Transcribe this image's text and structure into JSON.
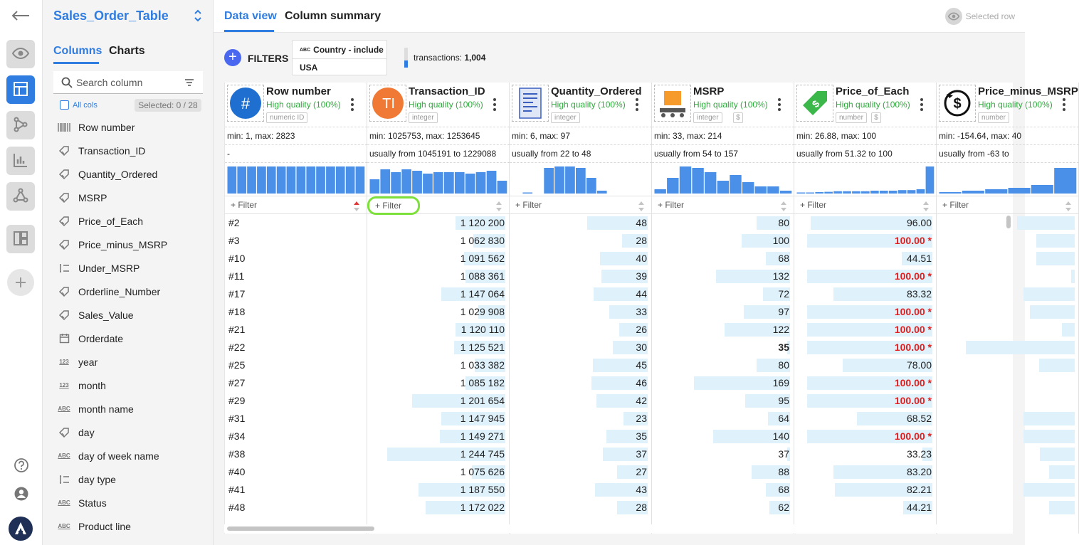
{
  "sidebar": {
    "table_name": "Sales_Order_Table",
    "tabs": [
      "Columns",
      "Charts"
    ],
    "search_placeholder": "Search column",
    "all_cols_label": "All cols",
    "selected_label": "Selected: 0 / 28",
    "columns": [
      {
        "name": "Row number",
        "icon": "barcode-icon"
      },
      {
        "name": "Transaction_ID",
        "icon": "tag-icon"
      },
      {
        "name": "Quantity_Ordered",
        "icon": "tag-icon"
      },
      {
        "name": "MSRP",
        "icon": "tag-icon"
      },
      {
        "name": "Price_of_Each",
        "icon": "tag-icon"
      },
      {
        "name": "Price_minus_MSRP",
        "icon": "tag-icon"
      },
      {
        "name": "Under_MSRP",
        "icon": "boolean-icon"
      },
      {
        "name": "Orderline_Number",
        "icon": "tag-icon"
      },
      {
        "name": "Sales_Value",
        "icon": "tag-icon"
      },
      {
        "name": "Orderdate",
        "icon": "calendar-icon"
      },
      {
        "name": "year",
        "icon": "number-icon",
        "badge": "123"
      },
      {
        "name": "month",
        "icon": "number-icon",
        "badge": "123"
      },
      {
        "name": "month name",
        "icon": "text-icon",
        "badge": "ABC"
      },
      {
        "name": "day",
        "icon": "tag-icon"
      },
      {
        "name": "day of week name",
        "icon": "text-icon",
        "badge": "ABC"
      },
      {
        "name": "day type",
        "icon": "boolean-icon"
      },
      {
        "name": "Status",
        "icon": "text-icon",
        "badge": "ABC"
      },
      {
        "name": "Product line",
        "icon": "text-icon",
        "badge": "ABC"
      }
    ]
  },
  "main": {
    "tabs": [
      "Data view",
      "Column summary"
    ],
    "selected_row_label": "Selected row",
    "filters_label": "FILTERS",
    "filter_chip": {
      "badge": "ABC",
      "name": "Country - include",
      "value": "USA"
    },
    "transactions": {
      "prefix": "transactions: ",
      "count": "1,004",
      "fraction": 0.36
    },
    "filter_placeholder": "Filter"
  },
  "grid": {
    "columns": [
      {
        "name": "Row number",
        "quality": "High quality (100%)",
        "types": [
          "numeric ID"
        ],
        "minmax": "min: 1, max: 2823",
        "usually": "-",
        "icon": "hash-icon",
        "hist": [
          0.95,
          0.95,
          0.95,
          0.95,
          0.95,
          0.95,
          0.95,
          0.95,
          0.95,
          0.95,
          0.95,
          0.95,
          0.95,
          0.95
        ],
        "bars": [],
        "align": "left",
        "sort": "desc",
        "values": [
          "#2",
          "#3",
          "#10",
          "#11",
          "#17",
          "#18",
          "#21",
          "#22",
          "#25",
          "#27",
          "#29",
          "#31",
          "#34",
          "#38",
          "#40",
          "#41",
          "#48"
        ]
      },
      {
        "name": "Transaction_ID",
        "quality": "High quality (100%)",
        "types": [
          "integer"
        ],
        "minmax": "min: 1025753, max: 1253645",
        "usually": "usually from 1045191 to 1229088",
        "icon": "ti-icon",
        "icon_text": "TI",
        "hist": [
          0.5,
          0.85,
          0.75,
          0.85,
          0.8,
          0.7,
          0.75,
          0.75,
          0.75,
          0.7,
          0.75,
          0.8,
          0.45
        ],
        "align": "right",
        "highlight_filter": true,
        "bars": [
          0.39,
          0.25,
          0.32,
          0.31,
          0.5,
          0.21,
          0.39,
          0.4,
          0.24,
          0.31,
          0.73,
          0.5,
          0.51,
          0.92,
          0.26,
          0.68,
          0.62
        ],
        "values": [
          "1 120 200",
          "1 062 830",
          "1 091 562",
          "1 088 361",
          "1 147 064",
          "1 029 908",
          "1 120 110",
          "1 125 521",
          "1 033 382",
          "1 085 182",
          "1 201 654",
          "1 147 945",
          "1 149 271",
          "1 244 745",
          "1 075 626",
          "1 187 550",
          "1 172 022"
        ]
      },
      {
        "name": "Quantity_Ordered",
        "quality": "High quality (100%)",
        "types": [
          "integer"
        ],
        "minmax": "min: 6, max: 97",
        "usually": "usually from 22 to 48",
        "icon": "receipt-icon",
        "hist": [
          0.0,
          0.02,
          0.0,
          0.9,
          0.95,
          0.95,
          0.9,
          0.55,
          0.1,
          0.0,
          0.0,
          0.0,
          0.0
        ],
        "align": "right",
        "bars": [
          0.47,
          0.2,
          0.37,
          0.36,
          0.42,
          0.3,
          0.22,
          0.27,
          0.43,
          0.44,
          0.4,
          0.19,
          0.32,
          0.35,
          0.24,
          0.41,
          0.24
        ],
        "values": [
          "48",
          "28",
          "40",
          "39",
          "44",
          "33",
          "26",
          "30",
          "45",
          "46",
          "42",
          "23",
          "35",
          "37",
          "27",
          "43",
          "28"
        ]
      },
      {
        "name": "MSRP",
        "quality": "High quality (100%)",
        "types": [
          "integer"
        ],
        "unit": "$",
        "minmax": "min: 33, max: 214",
        "usually": "usually from 54 to 157",
        "icon": "conveyor-icon",
        "hist": [
          0.15,
          0.55,
          0.95,
          0.9,
          0.75,
          0.45,
          0.65,
          0.4,
          0.25,
          0.25,
          0.1
        ],
        "align": "right",
        "bold_index": 7,
        "bars": [
          0.26,
          0.38,
          0.19,
          0.58,
          0.21,
          0.36,
          0.51,
          0.02,
          0.26,
          0.75,
          0.35,
          0.17,
          0.6,
          0.02,
          0.3,
          0.19,
          0.16
        ],
        "values": [
          "80",
          "100",
          "68",
          "132",
          "72",
          "97",
          "122",
          "35",
          "80",
          "169",
          "95",
          "64",
          "140",
          "37",
          "88",
          "68",
          "62"
        ]
      },
      {
        "name": "Price_of_Each",
        "quality": "High quality (100%)",
        "types": [
          "number"
        ],
        "unit": "$",
        "minmax": "min: 26.88, max: 100",
        "usually": "usually from 51.32 to 100",
        "icon": "price-tag-icon",
        "hist": [
          0.02,
          0.03,
          0.05,
          0.06,
          0.08,
          0.08,
          0.08,
          0.08,
          0.1,
          0.1,
          0.1,
          0.12,
          0.12,
          0.15,
          0.95
        ],
        "align": "right",
        "bars": [
          0.95,
          0.98,
          0.24,
          0.98,
          0.77,
          0.98,
          0.98,
          0.98,
          0.7,
          0.98,
          0.98,
          0.59,
          0.98,
          0.08,
          0.77,
          0.76,
          0.23
        ],
        "values": [
          "96.00",
          "100.00",
          "44.51",
          "100.00",
          "83.32",
          "100.00",
          "100.00",
          "100.00",
          "78.00",
          "100.00",
          "100.00",
          "68.52",
          "100.00",
          "33.23",
          "83.20",
          "82.21",
          "44.21"
        ],
        "red": [
          1,
          3,
          5,
          6,
          7,
          9,
          10,
          12
        ]
      },
      {
        "name": "Price_minus_MSRP",
        "quality": "High quality (100%)",
        "types": [
          "number"
        ],
        "minmax": "min: -154.64, max: 40",
        "usually": "usually from -63 to",
        "icon": "dollar-cycle-icon",
        "hist": [
          0.05,
          0.1,
          0.15,
          0.2,
          0.3,
          0.9
        ],
        "align": "right",
        "bars": [
          0.45,
          0.3,
          0.3,
          0.03,
          0.4,
          0.35,
          0.1,
          0.85,
          0.28,
          0.0,
          0.0,
          0.4,
          0.4,
          0.27,
          0.2,
          0.4,
          0.2
        ],
        "values": [
          "",
          "",
          "",
          "",
          "",
          "",
          "",
          "",
          "",
          "",
          "",
          "",
          "",
          "",
          "",
          "",
          ""
        ]
      }
    ]
  }
}
